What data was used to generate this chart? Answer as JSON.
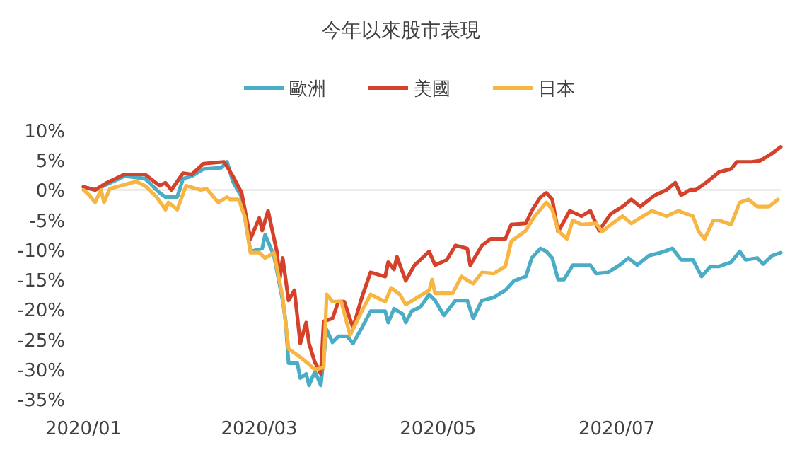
{
  "chart_data": {
    "type": "line",
    "title": "今年以來股市表現",
    "legend": "top",
    "line_style": "solid",
    "xlim": [
      "2020-01-01",
      "2020-08-26"
    ],
    "xticks": [
      {
        "value": "2020-01-01",
        "label": "2020/01"
      },
      {
        "value": "2020-03-01",
        "label": "2020/03"
      },
      {
        "value": "2020-05-01",
        "label": "2020/05"
      },
      {
        "value": "2020-07-01",
        "label": "2020/07"
      }
    ],
    "ylim": [
      -35,
      10
    ],
    "yticks": [
      {
        "value": -35,
        "label": "-35%"
      },
      {
        "value": -30,
        "label": "-30%"
      },
      {
        "value": -25,
        "label": "-25%"
      },
      {
        "value": -20,
        "label": "-20%"
      },
      {
        "value": -15,
        "label": "-15%"
      },
      {
        "value": -10,
        "label": "-10%"
      },
      {
        "value": -5,
        "label": "-5%"
      },
      {
        "value": 0,
        "label": "0%"
      },
      {
        "value": 5,
        "label": "5%"
      },
      {
        "value": 10,
        "label": "10%"
      }
    ],
    "ref_lines": [
      {
        "axis": "y",
        "value": 0,
        "color": "#d9d9d9"
      }
    ],
    "series": [
      {
        "name": "歐洲",
        "color": "#4bacc6",
        "x": [
          "2020-01-01",
          "2020-01-05",
          "2020-01-15",
          "2020-01-22",
          "2020-01-27",
          "2020-01-29",
          "2020-02-02",
          "2020-02-04",
          "2020-02-07",
          "2020-02-11",
          "2020-02-17",
          "2020-02-19",
          "2020-02-21",
          "2020-02-24",
          "2020-02-27",
          "2020-03-02",
          "2020-03-03",
          "2020-03-06",
          "2020-03-09",
          "2020-03-10",
          "2020-03-11",
          "2020-03-14",
          "2020-03-15",
          "2020-03-17",
          "2020-03-18",
          "2020-03-20",
          "2020-03-21",
          "2020-03-22",
          "2020-03-24",
          "2020-03-26",
          "2020-03-28",
          "2020-03-31",
          "2020-04-02",
          "2020-04-05",
          "2020-04-08",
          "2020-04-13",
          "2020-04-14",
          "2020-04-16",
          "2020-04-19",
          "2020-04-20",
          "2020-04-22",
          "2020-04-25",
          "2020-04-28",
          "2020-04-30",
          "2020-05-03",
          "2020-05-07",
          "2020-05-11",
          "2020-05-13",
          "2020-05-16",
          "2020-05-20",
          "2020-05-24",
          "2020-05-27",
          "2020-05-31",
          "2020-06-02",
          "2020-06-05",
          "2020-06-07",
          "2020-06-09",
          "2020-06-11",
          "2020-06-13",
          "2020-06-16",
          "2020-06-20",
          "2020-06-22",
          "2020-06-24",
          "2020-06-28",
          "2020-07-02",
          "2020-07-05",
          "2020-07-08",
          "2020-07-12",
          "2020-07-16",
          "2020-07-20",
          "2020-07-23",
          "2020-07-27",
          "2020-07-30",
          "2020-08-02",
          "2020-08-05",
          "2020-08-09",
          "2020-08-12",
          "2020-08-14",
          "2020-08-18",
          "2020-08-20",
          "2020-08-23",
          "2020-08-26"
        ],
        "values": [
          0.5,
          0,
          2.3,
          1.9,
          -0.5,
          -1.2,
          -1.2,
          1.9,
          2.3,
          3.5,
          3.7,
          4.7,
          1.4,
          -1.2,
          -10.3,
          -9.8,
          -7.5,
          -11,
          -18.5,
          -22,
          -29,
          -29,
          -31.5,
          -30.8,
          -32.7,
          -30.4,
          -31.5,
          -32.7,
          -23.4,
          -25.5,
          -24.5,
          -24.5,
          -25.7,
          -23.1,
          -20.3,
          -20.3,
          -22.2,
          -19.9,
          -20.8,
          -22.2,
          -20.3,
          -19.6,
          -17.5,
          -18.5,
          -21,
          -18.5,
          -18.5,
          -21.5,
          -18.5,
          -18,
          -16.8,
          -15.2,
          -14.5,
          -11.4,
          -9.8,
          -10.3,
          -11.4,
          -15,
          -15,
          -12.6,
          -12.6,
          -12.6,
          -14,
          -13.8,
          -12.6,
          -11.4,
          -12.6,
          -11,
          -10.5,
          -9.8,
          -11.7,
          -11.7,
          -14.5,
          -12.8,
          -12.8,
          -12.1,
          -10.3,
          -11.7,
          -11.4,
          -12.4,
          -11,
          -10.5
        ]
      },
      {
        "name": "美國",
        "color": "#d5422b",
        "x": [
          "2020-01-01",
          "2020-01-05",
          "2020-01-09",
          "2020-01-15",
          "2020-01-22",
          "2020-01-27",
          "2020-01-29",
          "2020-01-31",
          "2020-02-04",
          "2020-02-07",
          "2020-02-11",
          "2020-02-18",
          "2020-02-21",
          "2020-02-24",
          "2020-02-27",
          "2020-03-01",
          "2020-03-02",
          "2020-03-04",
          "2020-03-07",
          "2020-03-08",
          "2020-03-09",
          "2020-03-11",
          "2020-03-13",
          "2020-03-15",
          "2020-03-17",
          "2020-03-18",
          "2020-03-20",
          "2020-03-21",
          "2020-03-22",
          "2020-03-23",
          "2020-03-26",
          "2020-03-28",
          "2020-03-30",
          "2020-04-02",
          "2020-04-05",
          "2020-04-08",
          "2020-04-13",
          "2020-04-14",
          "2020-04-16",
          "2020-04-17",
          "2020-04-20",
          "2020-04-23",
          "2020-04-28",
          "2020-04-30",
          "2020-05-04",
          "2020-05-07",
          "2020-05-11",
          "2020-05-12",
          "2020-05-16",
          "2020-05-19",
          "2020-05-24",
          "2020-05-26",
          "2020-05-31",
          "2020-06-02",
          "2020-06-05",
          "2020-06-07",
          "2020-06-09",
          "2020-06-11",
          "2020-06-15",
          "2020-06-19",
          "2020-06-22",
          "2020-06-25",
          "2020-06-29",
          "2020-07-03",
          "2020-07-06",
          "2020-07-09",
          "2020-07-14",
          "2020-07-18",
          "2020-07-21",
          "2020-07-23",
          "2020-07-26",
          "2020-07-28",
          "2020-08-01",
          "2020-08-05",
          "2020-08-09",
          "2020-08-11",
          "2020-08-16",
          "2020-08-19",
          "2020-08-23",
          "2020-08-26"
        ],
        "values": [
          0.5,
          0,
          1.2,
          2.6,
          2.6,
          0.7,
          1.2,
          0,
          2.8,
          2.6,
          4.4,
          4.7,
          2.3,
          -0.5,
          -8.2,
          -4.7,
          -6.8,
          -3.5,
          -10.3,
          -14.9,
          -11.4,
          -18.5,
          -16.8,
          -25.7,
          -22.2,
          -25.7,
          -28.9,
          -29.7,
          -30.8,
          -22,
          -21.5,
          -18.7,
          -18.7,
          -23.1,
          -18,
          -13.8,
          -14.5,
          -12.1,
          -13.3,
          -11.2,
          -15.2,
          -12.6,
          -10.3,
          -12.6,
          -11.7,
          -9.3,
          -9.8,
          -12.6,
          -9.3,
          -8.2,
          -8.2,
          -5.8,
          -5.6,
          -3.5,
          -1.2,
          -0.5,
          -1.6,
          -7,
          -3.5,
          -4.4,
          -3.5,
          -6.8,
          -4,
          -2.8,
          -1.6,
          -2.8,
          -0.9,
          0,
          1.2,
          -0.9,
          0,
          0,
          1.4,
          3,
          3.5,
          4.7,
          4.7,
          4.9,
          6.1,
          7.2
        ]
      },
      {
        "name": "日本",
        "color": "#f7b543",
        "x": [
          "2020-01-01",
          "2020-01-03",
          "2020-01-05",
          "2020-01-07",
          "2020-01-08",
          "2020-01-10",
          "2020-01-19",
          "2020-01-22",
          "2020-01-26",
          "2020-01-29",
          "2020-01-30",
          "2020-02-02",
          "2020-02-05",
          "2020-02-10",
          "2020-02-12",
          "2020-02-16",
          "2020-02-19",
          "2020-02-20",
          "2020-02-23",
          "2020-02-25",
          "2020-02-27",
          "2020-03-01",
          "2020-03-03",
          "2020-03-06",
          "2020-03-09",
          "2020-03-11",
          "2020-03-15",
          "2020-03-18",
          "2020-03-20",
          "2020-03-23",
          "2020-03-24",
          "2020-03-26",
          "2020-03-29",
          "2020-04-01",
          "2020-04-05",
          "2020-04-08",
          "2020-04-13",
          "2020-04-15",
          "2020-04-18",
          "2020-04-20",
          "2020-04-24",
          "2020-04-28",
          "2020-04-29",
          "2020-04-30",
          "2020-05-06",
          "2020-05-09",
          "2020-05-13",
          "2020-05-16",
          "2020-05-20",
          "2020-05-24",
          "2020-05-26",
          "2020-05-28",
          "2020-05-31",
          "2020-06-03",
          "2020-06-07",
          "2020-06-09",
          "2020-06-11",
          "2020-06-14",
          "2020-06-16",
          "2020-06-19",
          "2020-06-24",
          "2020-06-26",
          "2020-06-29",
          "2020-07-03",
          "2020-07-06",
          "2020-07-09",
          "2020-07-13",
          "2020-07-18",
          "2020-07-22",
          "2020-07-27",
          "2020-07-29",
          "2020-07-31",
          "2020-08-03",
          "2020-08-05",
          "2020-08-09",
          "2020-08-12",
          "2020-08-15",
          "2020-08-18",
          "2020-08-22",
          "2020-08-25"
        ],
        "values": [
          0,
          -0.9,
          -2.1,
          0,
          -2.1,
          0.2,
          1.4,
          0.7,
          -1.2,
          -3.3,
          -2.1,
          -3.3,
          0.7,
          0,
          0.2,
          -2.1,
          -1.2,
          -1.6,
          -1.6,
          -4.4,
          -10.5,
          -10.5,
          -11.4,
          -10.5,
          -18,
          -26.6,
          -28,
          -29.2,
          -30.1,
          -29.7,
          -17.5,
          -18.7,
          -18.7,
          -24.3,
          -20.3,
          -17.5,
          -18.7,
          -16.4,
          -17.5,
          -19.2,
          -18,
          -16.8,
          -15,
          -17.3,
          -17.3,
          -14.5,
          -15.7,
          -13.8,
          -14,
          -12.8,
          -8.6,
          -7.9,
          -6.8,
          -4.4,
          -2.1,
          -3.3,
          -6.8,
          -8.2,
          -5.1,
          -5.8,
          -5.6,
          -7,
          -5.8,
          -4.4,
          -5.6,
          -4.7,
          -3.5,
          -4.4,
          -3.5,
          -4.4,
          -7,
          -8.2,
          -5.1,
          -5.1,
          -5.8,
          -2.1,
          -1.6,
          -2.8,
          -2.8,
          -1.6
        ]
      }
    ]
  }
}
